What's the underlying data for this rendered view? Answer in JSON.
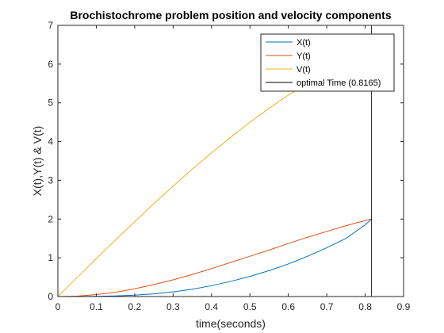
{
  "chart_data": {
    "type": "line",
    "title": "Brochistochrome problem position and velocity components",
    "xlabel": "time(seconds)",
    "ylabel": "X(t),Y(t) & V(t)",
    "xlim": [
      0,
      0.9
    ],
    "ylim": [
      0,
      7
    ],
    "xticks": [
      "0",
      "0.1",
      "0.2",
      "0.3",
      "0.4",
      "0.5",
      "0.6",
      "0.7",
      "0.8",
      "0.9"
    ],
    "yticks": [
      "0",
      "1",
      "2",
      "3",
      "4",
      "5",
      "6",
      "7"
    ],
    "grid": false,
    "legend_position": "top-right",
    "series": [
      {
        "name": "X(t)",
        "color": "#0072BD",
        "x": [
          0,
          0.05,
          0.1,
          0.15,
          0.2,
          0.25,
          0.3,
          0.35,
          0.4,
          0.45,
          0.5,
          0.55,
          0.6,
          0.65,
          0.7,
          0.75,
          0.8,
          0.8165
        ],
        "y": [
          0,
          0.0,
          0.005,
          0.015,
          0.035,
          0.07,
          0.12,
          0.19,
          0.28,
          0.39,
          0.52,
          0.67,
          0.84,
          1.04,
          1.26,
          1.5,
          1.85,
          2.0
        ]
      },
      {
        "name": "Y(t)",
        "color": "#D95319",
        "x": [
          0,
          0.05,
          0.1,
          0.15,
          0.2,
          0.25,
          0.3,
          0.35,
          0.4,
          0.45,
          0.5,
          0.55,
          0.6,
          0.65,
          0.7,
          0.75,
          0.8,
          0.8165
        ],
        "y": [
          0,
          0.01,
          0.05,
          0.11,
          0.2,
          0.31,
          0.43,
          0.57,
          0.72,
          0.88,
          1.04,
          1.2,
          1.37,
          1.53,
          1.68,
          1.83,
          1.96,
          2.0
        ]
      },
      {
        "name": "V(t)",
        "color": "#EDB120",
        "x": [
          0,
          0.05,
          0.1,
          0.15,
          0.2,
          0.25,
          0.3,
          0.35,
          0.4,
          0.45,
          0.5,
          0.55,
          0.6,
          0.65,
          0.7,
          0.75,
          0.8,
          0.8165
        ],
        "y": [
          0,
          0.49,
          0.98,
          1.46,
          1.93,
          2.4,
          2.85,
          3.29,
          3.71,
          4.11,
          4.5,
          4.86,
          5.2,
          5.5,
          5.78,
          6.03,
          6.25,
          6.32
        ]
      },
      {
        "name": "optimal Time (0.8165)",
        "color": "#000000",
        "x": [
          0.8165,
          0.8165
        ],
        "y": [
          0,
          7
        ]
      }
    ]
  }
}
